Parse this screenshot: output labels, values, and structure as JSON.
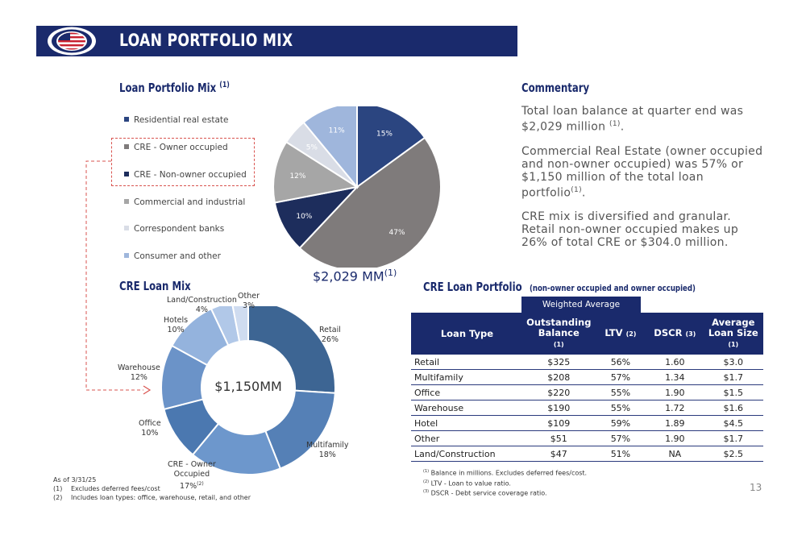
{
  "header": {
    "title": "LOAN PORTFOLIO MIX"
  },
  "mix": {
    "title": "Loan Portfolio Mix",
    "title_note": "(1)",
    "legend": [
      {
        "label": "Residential real estate",
        "color": "#2b4580"
      },
      {
        "label": "CRE - Owner occupied",
        "color": "#7f7b7b"
      },
      {
        "label": "CRE - Non-owner occupied",
        "color": "#1d2d5c"
      },
      {
        "label": "Commercial and industrial",
        "color": "#a6a6a6"
      },
      {
        "label": "Correspondent banks",
        "color": "#d9dde6"
      },
      {
        "label": "Consumer and other",
        "color": "#9fb6dc"
      }
    ],
    "total_label": "$2,029 MM",
    "total_note": "(1)"
  },
  "cre_mix": {
    "title": "CRE Loan Mix",
    "center_label": "$1,150MM",
    "labels": [
      {
        "name": "Retail",
        "pct": "26%"
      },
      {
        "name": "Multifamily",
        "pct": "18%"
      },
      {
        "name": "CRE - Owner",
        "name2": "Occupied",
        "pct": "17%",
        "note": "(2)"
      },
      {
        "name": "Office",
        "pct": "10%"
      },
      {
        "name": "Warehouse",
        "pct": "12%"
      },
      {
        "name": "Hotels",
        "pct": "10%"
      },
      {
        "name": "Land/Construction",
        "pct": "4%"
      },
      {
        "name": "Other",
        "pct": "3%"
      }
    ]
  },
  "commentary": {
    "title": "Commentary",
    "p1": "Total loan balance at quarter end was $2,029 million",
    "p1_note": "(1)",
    "p2": "Commercial Real Estate (owner occupied and non-owner occupied) was 57% or $1,150 million of the total loan portfolio",
    "p2_note": "(1)",
    "p3": "CRE mix is diversified and granular. Retail non-owner occupied makes up 26% of total CRE or $304.0 million."
  },
  "cre_portfolio": {
    "title": "CRE Loan Portfolio",
    "subtitle": "(non-owner occupied and owner occupied)",
    "weighted_average": "Weighted Average",
    "headers": {
      "loan_type": "Loan Type",
      "outstanding": "Outstanding Balance",
      "outstanding_note": "(1)",
      "ltv": "LTV",
      "ltv_note": "(2)",
      "dscr": "DSCR",
      "dscr_note": "(3)",
      "avg": "Average Loan Size",
      "avg_note": "(1)"
    },
    "rows": [
      [
        "Retail",
        "$325",
        "56%",
        "1.60",
        "$3.0"
      ],
      [
        "Multifamily",
        "$208",
        "57%",
        "1.34",
        "$1.7"
      ],
      [
        "Office",
        "$220",
        "55%",
        "1.90",
        "$1.5"
      ],
      [
        "Warehouse",
        "$190",
        "55%",
        "1.72",
        "$1.6"
      ],
      [
        "Hotel",
        "$109",
        "59%",
        "1.89",
        "$4.5"
      ],
      [
        "Other",
        "$51",
        "57%",
        "1.90",
        "$1.7"
      ],
      [
        "Land/Construction",
        "$47",
        "51%",
        "NA",
        "$2.5"
      ]
    ],
    "footnotes": [
      {
        "n": "(1)",
        "text": "Balance in millions. Excludes deferred fees/cost."
      },
      {
        "n": "(2)",
        "text": "LTV - Loan to value ratio."
      },
      {
        "n": "(3)",
        "text": "DSCR - Debt service coverage ratio."
      }
    ]
  },
  "footer": {
    "asof": "As of 3/31/25",
    "notes": [
      {
        "n": "(1)",
        "text": "Excludes deferred fees/cost"
      },
      {
        "n": "(2)",
        "text": "Includes loan types: office, warehouse, retail, and other"
      }
    ],
    "page": "13"
  },
  "chart_data": [
    {
      "type": "pie",
      "title": "Loan Portfolio Mix",
      "categories": [
        "Residential real estate",
        "CRE - Owner occupied",
        "CRE - Non-owner occupied",
        "Commercial and industrial",
        "Correspondent banks",
        "Consumer and other"
      ],
      "values": [
        15,
        47,
        10,
        12,
        5,
        11
      ],
      "colors": [
        "#2b4580",
        "#7f7b7b",
        "#1d2d5c",
        "#a6a6a6",
        "#d9dde6",
        "#9fb6dc"
      ],
      "legend": "left"
    },
    {
      "type": "pie",
      "title": "CRE Loan Mix",
      "categories": [
        "Retail",
        "Multifamily",
        "CRE - Owner Occupied",
        "Office",
        "Warehouse",
        "Hotels",
        "Land/Construction",
        "Other"
      ],
      "values": [
        26,
        18,
        17,
        10,
        12,
        10,
        4,
        3
      ],
      "colors": [
        "#3d6593",
        "#5580b6",
        "#6d97cc",
        "#4b78b0",
        "#6b93c8",
        "#94b3dd",
        "#b1c8e8",
        "#cfdcf0"
      ]
    }
  ]
}
